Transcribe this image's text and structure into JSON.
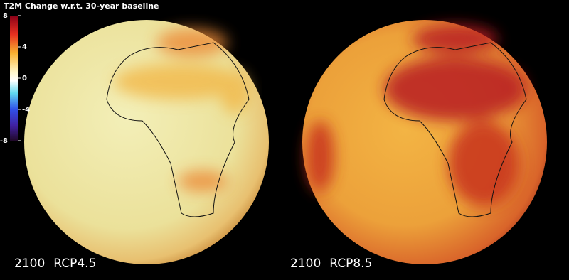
{
  "colorbar": {
    "title": "T2M Change w.r.t. 30-year baseline",
    "range": [
      -8,
      8
    ],
    "ticks": [
      8,
      4,
      0,
      -4,
      -8
    ]
  },
  "panels": [
    {
      "year": "2100",
      "scenario": "RCP4.5"
    },
    {
      "year": "2100",
      "scenario": "RCP8.5"
    }
  ]
}
